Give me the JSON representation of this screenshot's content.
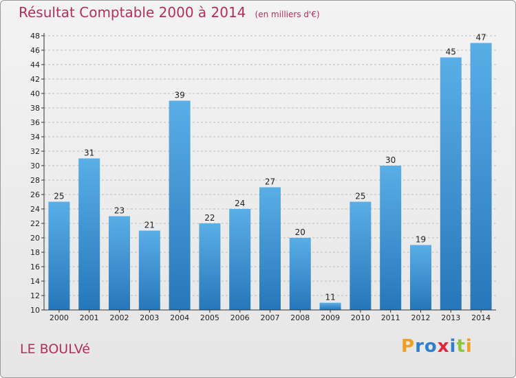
{
  "chart_data": {
    "type": "bar",
    "title": "Résultat Comptable 2000 à 2014",
    "subtitle": "(en milliers d'€)",
    "categories": [
      "2000",
      "2001",
      "2002",
      "2003",
      "2004",
      "2005",
      "2006",
      "2007",
      "2008",
      "2009",
      "2010",
      "2011",
      "2012",
      "2013",
      "2014"
    ],
    "values": [
      25,
      31,
      23,
      21,
      39,
      22,
      24,
      27,
      20,
      11,
      25,
      30,
      19,
      45,
      47
    ],
    "ylim": [
      10,
      48
    ],
    "yticks": [
      10,
      12,
      14,
      16,
      18,
      20,
      22,
      24,
      26,
      28,
      30,
      32,
      34,
      36,
      38,
      40,
      42,
      44,
      46,
      48
    ],
    "grid": true,
    "legend": "none"
  },
  "commune": "LE BOULVé",
  "logo": {
    "letters": [
      "P",
      "r",
      "o",
      "x",
      "i",
      "t",
      "i"
    ],
    "colors": [
      "#f0a01e",
      "#2f7fd0",
      "#2f7fd0",
      "#e2253f",
      "#2f7fd0",
      "#8cc63f",
      "#f0a01e"
    ]
  },
  "colors": {
    "accent": "#b42d5f",
    "bar_light": "#5aaee6",
    "bar_dark": "#2677b9",
    "grid": "#bcbcbc",
    "axis": "#333333"
  }
}
